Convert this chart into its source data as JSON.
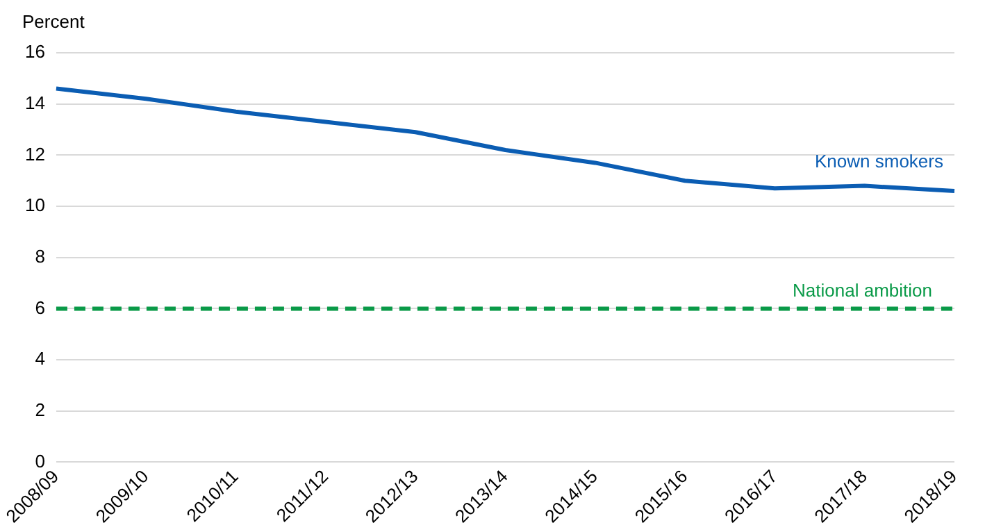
{
  "chart_data": {
    "type": "line",
    "ylabel": "Percent",
    "categories": [
      "2008/09",
      "2009/10",
      "2010/11",
      "2011/12",
      "2012/13",
      "2013/14",
      "2014/15",
      "2015/16",
      "2016/17",
      "2017/18",
      "2018/19"
    ],
    "series": [
      {
        "name": "Known smokers",
        "color": "#0b5db3",
        "values": [
          14.6,
          14.2,
          13.7,
          13.3,
          12.9,
          12.2,
          11.7,
          11.0,
          10.7,
          10.8,
          10.6
        ]
      }
    ],
    "ref_lines": [
      {
        "axis": "y",
        "value": 6,
        "label": "National ambition",
        "color": "#0a9a48",
        "line_style": "dashed"
      }
    ],
    "ylim": [
      0,
      16
    ],
    "yticks": [
      0,
      2,
      4,
      6,
      8,
      10,
      12,
      14,
      16
    ],
    "grid": "y",
    "legend": false,
    "marker": "none",
    "line_style": "solid"
  }
}
